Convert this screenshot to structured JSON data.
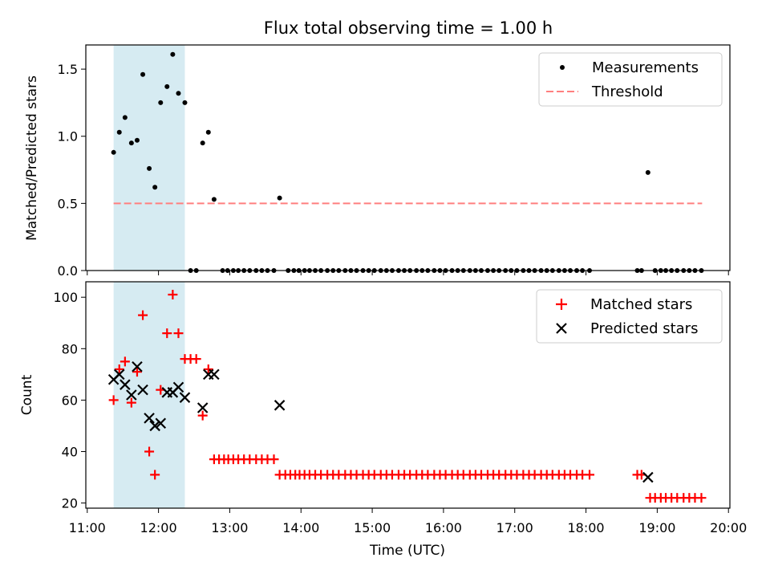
{
  "title": "Flux total observing time = 1.00 h",
  "colors": {
    "measurement": "#000000",
    "threshold": "#ff7f7f",
    "matched": "#ff0000",
    "predicted": "#000000",
    "span": "#add8e6"
  },
  "chart_data": [
    {
      "type": "scatter",
      "ylabel": "Matched/Predicted stars",
      "xlabel": "",
      "xlim": [
        10.98,
        20.02
      ],
      "ylim": [
        0,
        1.68
      ],
      "yticks": [
        0.0,
        0.5,
        1.0,
        1.5
      ],
      "ytick_labels": [
        "0.0",
        "0.5",
        "1.0",
        "1.5"
      ],
      "span": [
        11.37,
        12.37
      ],
      "legend": {
        "position": "upper right",
        "entries": [
          "Measurements",
          "Threshold"
        ]
      },
      "threshold": {
        "name": "Threshold",
        "y": 0.5,
        "x": [
          11.37,
          19.63
        ]
      },
      "series": [
        {
          "name": "Measurements",
          "x": [
            11.37,
            11.45,
            11.53,
            11.62,
            11.7,
            11.78,
            11.87,
            11.95,
            12.03,
            12.12,
            12.2,
            12.28,
            12.37,
            12.45,
            12.53,
            12.62,
            12.7,
            12.78,
            12.9,
            12.97,
            13.05,
            13.12,
            13.2,
            13.28,
            13.37,
            13.45,
            13.53,
            13.62,
            13.7,
            13.82,
            13.9,
            13.97,
            14.05,
            14.12,
            14.2,
            14.28,
            14.37,
            14.45,
            14.53,
            14.62,
            14.7,
            14.78,
            14.87,
            14.95,
            15.03,
            15.12,
            15.2,
            15.28,
            15.37,
            15.45,
            15.53,
            15.62,
            15.7,
            15.78,
            15.87,
            15.95,
            16.03,
            16.12,
            16.2,
            16.28,
            16.37,
            16.45,
            16.53,
            16.62,
            16.7,
            16.78,
            16.87,
            16.95,
            17.03,
            17.12,
            17.2,
            17.28,
            17.37,
            17.45,
            17.53,
            17.62,
            17.7,
            17.78,
            17.87,
            17.95,
            18.05,
            18.72,
            18.78,
            18.87,
            18.97,
            19.05,
            19.12,
            19.2,
            19.28,
            19.37,
            19.45,
            19.53,
            19.62
          ],
          "y": [
            0.88,
            1.03,
            1.14,
            0.95,
            0.97,
            1.46,
            0.76,
            0.62,
            1.25,
            1.37,
            1.61,
            1.32,
            1.25,
            0,
            0,
            0.95,
            1.03,
            0.53,
            0,
            0,
            0,
            0,
            0,
            0,
            0,
            0,
            0,
            0,
            0.54,
            0,
            0,
            0,
            0,
            0,
            0,
            0,
            0,
            0,
            0,
            0,
            0,
            0,
            0,
            0,
            0,
            0,
            0,
            0,
            0,
            0,
            0,
            0,
            0,
            0,
            0,
            0,
            0,
            0,
            0,
            0,
            0,
            0,
            0,
            0,
            0,
            0,
            0,
            0,
            0,
            0,
            0,
            0,
            0,
            0,
            0,
            0,
            0,
            0,
            0,
            0,
            0,
            0,
            0,
            0.73,
            0,
            0,
            0,
            0,
            0,
            0,
            0,
            0,
            0
          ]
        }
      ]
    },
    {
      "type": "scatter",
      "ylabel": "Count",
      "xlabel": "Time (UTC)",
      "xlim": [
        10.98,
        20.02
      ],
      "ylim": [
        18,
        106
      ],
      "yticks": [
        20,
        40,
        60,
        80,
        100
      ],
      "ytick_labels": [
        "20",
        "40",
        "60",
        "80",
        "100"
      ],
      "xticks": [
        11,
        12,
        13,
        14,
        15,
        16,
        17,
        18,
        19,
        20
      ],
      "xtick_labels": [
        "11:00",
        "12:00",
        "13:00",
        "14:00",
        "15:00",
        "16:00",
        "17:00",
        "18:00",
        "19:00",
        "20:00"
      ],
      "span": [
        11.37,
        12.37
      ],
      "legend": {
        "position": "upper right",
        "entries": [
          "Matched stars",
          "Predicted stars"
        ]
      },
      "series": [
        {
          "name": "Matched stars",
          "marker": "plus",
          "x": [
            11.37,
            11.45,
            11.53,
            11.62,
            11.7,
            11.78,
            11.87,
            11.95,
            12.03,
            12.12,
            12.2,
            12.28,
            12.37,
            12.45,
            12.53,
            12.62,
            12.7,
            12.78,
            12.85,
            12.92,
            12.98,
            13.05,
            13.12,
            13.2,
            13.28,
            13.37,
            13.45,
            13.53,
            13.62,
            13.7,
            13.78,
            13.85,
            13.92,
            13.98,
            14.05,
            14.12,
            14.2,
            14.28,
            14.37,
            14.45,
            14.53,
            14.62,
            14.7,
            14.78,
            14.87,
            14.95,
            15.03,
            15.12,
            15.2,
            15.28,
            15.37,
            15.45,
            15.53,
            15.62,
            15.7,
            15.78,
            15.87,
            15.95,
            16.03,
            16.12,
            16.2,
            16.28,
            16.37,
            16.45,
            16.53,
            16.62,
            16.7,
            16.78,
            16.87,
            16.95,
            17.03,
            17.12,
            17.2,
            17.28,
            17.37,
            17.45,
            17.53,
            17.62,
            17.7,
            17.78,
            17.87,
            17.95,
            18.05,
            18.72,
            18.78,
            18.9,
            18.97,
            19.05,
            19.12,
            19.2,
            19.28,
            19.37,
            19.45,
            19.53,
            19.62
          ],
          "y": [
            60,
            72,
            75,
            59,
            71,
            93,
            40,
            31,
            64,
            86,
            101,
            86,
            76,
            76,
            76,
            54,
            72,
            37,
            37,
            37,
            37,
            37,
            37,
            37,
            37,
            37,
            37,
            37,
            37,
            31,
            31,
            31,
            31,
            31,
            31,
            31,
            31,
            31,
            31,
            31,
            31,
            31,
            31,
            31,
            31,
            31,
            31,
            31,
            31,
            31,
            31,
            31,
            31,
            31,
            31,
            31,
            31,
            31,
            31,
            31,
            31,
            31,
            31,
            31,
            31,
            31,
            31,
            31,
            31,
            31,
            31,
            31,
            31,
            31,
            31,
            31,
            31,
            31,
            31,
            31,
            31,
            31,
            31,
            31,
            31,
            22,
            22,
            22,
            22,
            22,
            22,
            22,
            22,
            22,
            22
          ]
        },
        {
          "name": "Predicted stars",
          "marker": "x",
          "x": [
            11.37,
            11.45,
            11.53,
            11.62,
            11.7,
            11.78,
            11.87,
            11.95,
            12.03,
            12.12,
            12.2,
            12.28,
            12.37,
            12.62,
            12.7,
            12.78,
            13.7,
            18.87
          ],
          "y": [
            68,
            70,
            66,
            62,
            73,
            64,
            53,
            50,
            51,
            63,
            63,
            65,
            61,
            57,
            70,
            70,
            58,
            30
          ]
        }
      ]
    }
  ]
}
